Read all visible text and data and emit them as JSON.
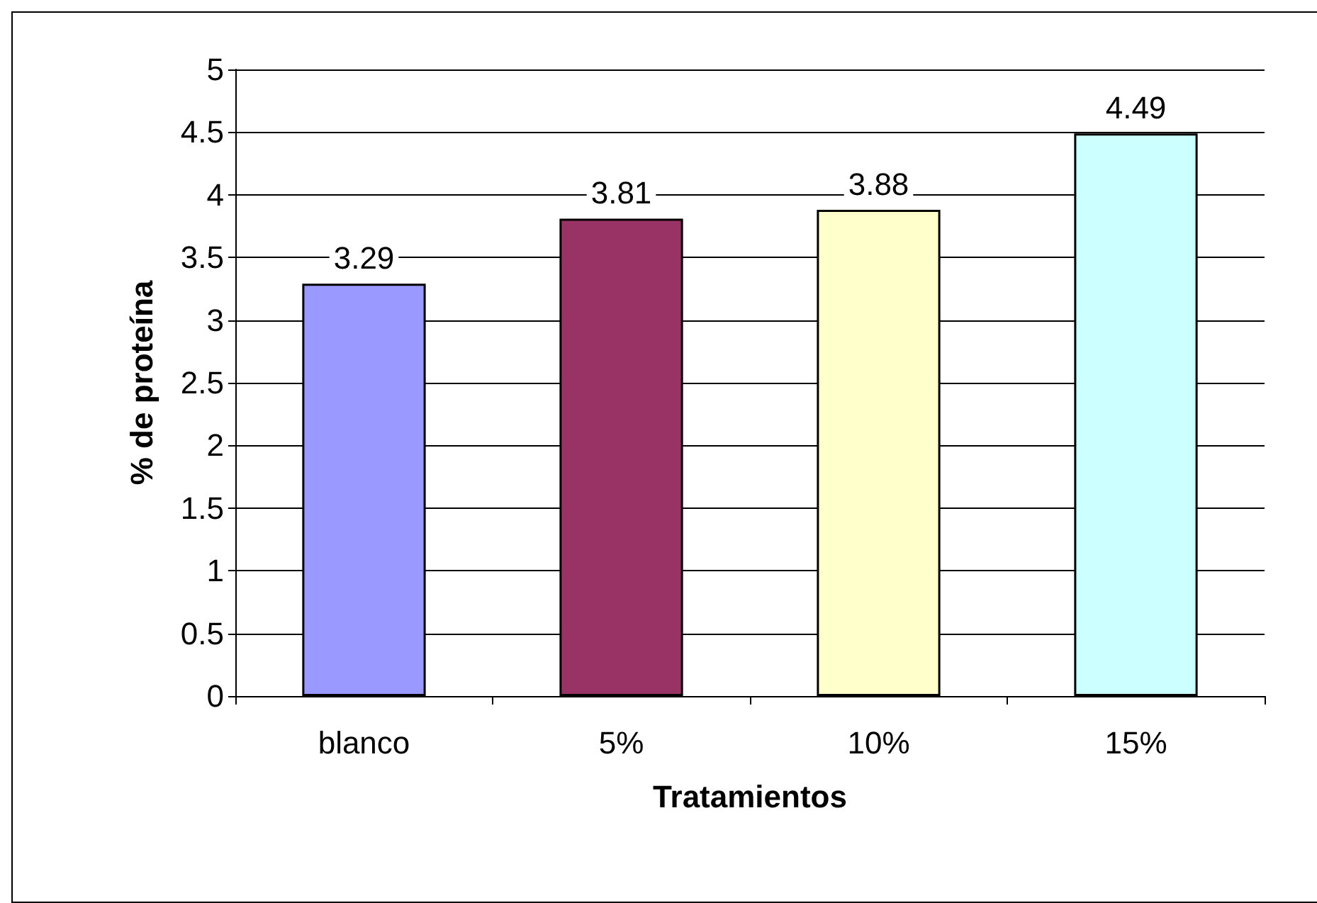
{
  "chart_data": {
    "type": "bar",
    "xlabel": "Tratamientos",
    "ylabel": "% de proteína",
    "categories": [
      "blanco",
      "5%",
      "10%",
      "15%"
    ],
    "values": [
      3.29,
      3.81,
      3.88,
      4.49
    ],
    "colors": [
      "#9999ff",
      "#993366",
      "#ffffcc",
      "#ccffff"
    ],
    "ylim": [
      0,
      5
    ],
    "yticks": [
      0,
      0.5,
      1,
      1.5,
      2,
      2.5,
      3,
      3.5,
      4,
      4.5,
      5
    ],
    "grid": "y",
    "data_labels": true
  }
}
